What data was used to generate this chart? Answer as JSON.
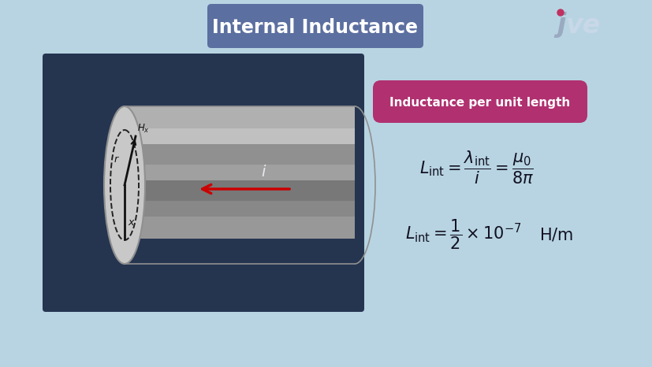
{
  "title": "Internal Inductance",
  "title_box_color": "#5b6fa0",
  "title_text_color": "#ffffff",
  "bg_color": "#b8d4e2",
  "subtitle_box_color": "#b03070",
  "subtitle_text_color": "#ffffff",
  "subtitle": "Inductance per unit length",
  "panel_bg_color": "#253550",
  "arrow_color": "#cc0000",
  "label_color": "#111111",
  "stripe_colors": [
    "#b0b0b0",
    "#c0c0c0",
    "#909090",
    "#a0a0a0",
    "#787878",
    "#888888",
    "#989898"
  ],
  "stripe_heights": [
    28,
    20,
    26,
    20,
    26,
    20,
    28
  ],
  "face_color": "#c8c8c8",
  "cylinder_edge_color": "#909090"
}
